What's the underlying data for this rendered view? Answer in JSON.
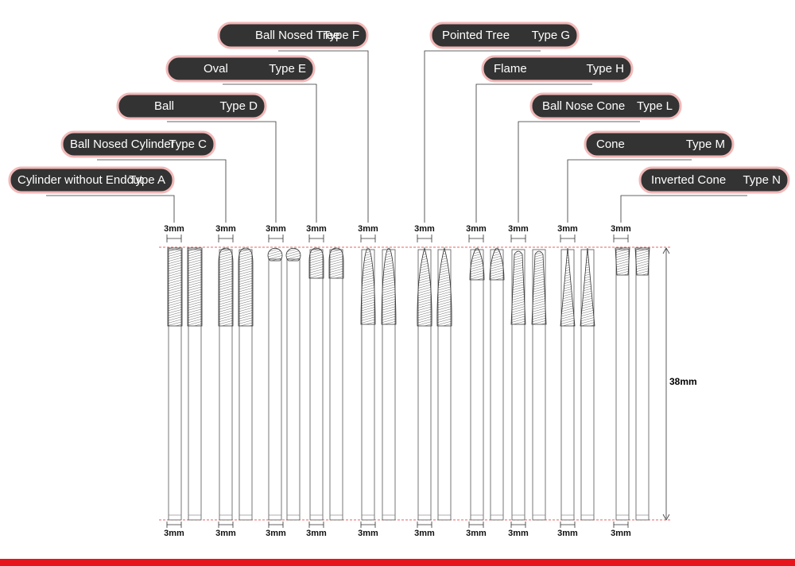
{
  "tools": [
    {
      "name": "Cylinder without Endcut",
      "type": "Type A",
      "top_width": "3mm",
      "bottom_width": "3mm"
    },
    {
      "name": "Ball Nosed Cylinder",
      "type": "Type C",
      "top_width": "3mm",
      "bottom_width": "3mm"
    },
    {
      "name": "Ball",
      "type": "Type D",
      "top_width": "3mm",
      "bottom_width": "3mm"
    },
    {
      "name": "Oval",
      "type": "Type E",
      "top_width": "3mm",
      "bottom_width": "3mm"
    },
    {
      "name": "Ball Nosed Tree",
      "type": "Type F",
      "top_width": "3mm",
      "bottom_width": "3mm"
    },
    {
      "name": "Pointed Tree",
      "type": "Type G",
      "top_width": "3mm",
      "bottom_width": "3mm"
    },
    {
      "name": "Flame",
      "type": "Type H",
      "top_width": "3mm",
      "bottom_width": "3mm"
    },
    {
      "name": "Ball Nose Cone",
      "type": "Type L",
      "top_width": "3mm",
      "bottom_width": "3mm"
    },
    {
      "name": "Cone",
      "type": "Type M",
      "top_width": "3mm",
      "bottom_width": "3mm"
    },
    {
      "name": "Inverted Cone",
      "type": "Type N",
      "top_width": "3mm",
      "bottom_width": "3mm"
    }
  ],
  "length": "38mm"
}
